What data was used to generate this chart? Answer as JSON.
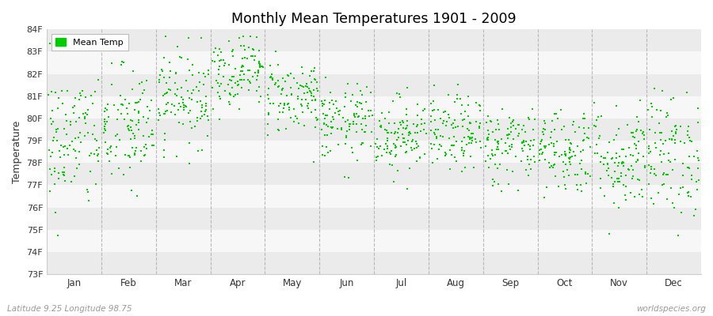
{
  "title": "Monthly Mean Temperatures 1901 - 2009",
  "ylabel": "Temperature",
  "subtitle_left": "Latitude 9.25 Longitude 98.75",
  "subtitle_right": "worldspecies.org",
  "dot_color": "#00cc00",
  "legend_label": "Mean Temp",
  "background_color": "#ffffff",
  "plot_bg_odd": "#ebebeb",
  "plot_bg_even": "#f7f7f7",
  "grid_line_color": "#aaaaaa",
  "ylim_min": 73,
  "ylim_max": 84,
  "yticks": [
    73,
    74,
    75,
    76,
    77,
    78,
    79,
    80,
    81,
    82,
    83,
    84
  ],
  "ytick_labels": [
    "73F",
    "74F",
    "75F",
    "76F",
    "77F",
    "78F",
    "79F",
    "80F",
    "81F",
    "82F",
    "83F",
    "84F"
  ],
  "months": [
    "Jan",
    "Feb",
    "Mar",
    "Apr",
    "May",
    "Jun",
    "Jul",
    "Aug",
    "Sep",
    "Oct",
    "Nov",
    "Dec"
  ],
  "num_years": 109,
  "seed": 42,
  "monthly_means_f": [
    79.0,
    79.5,
    81.0,
    82.2,
    81.0,
    79.8,
    79.3,
    79.3,
    78.8,
    78.6,
    78.2,
    78.4
  ],
  "monthly_stds_f": [
    1.6,
    1.4,
    1.1,
    0.85,
    0.85,
    0.85,
    0.85,
    0.85,
    0.9,
    1.0,
    1.2,
    1.4
  ]
}
